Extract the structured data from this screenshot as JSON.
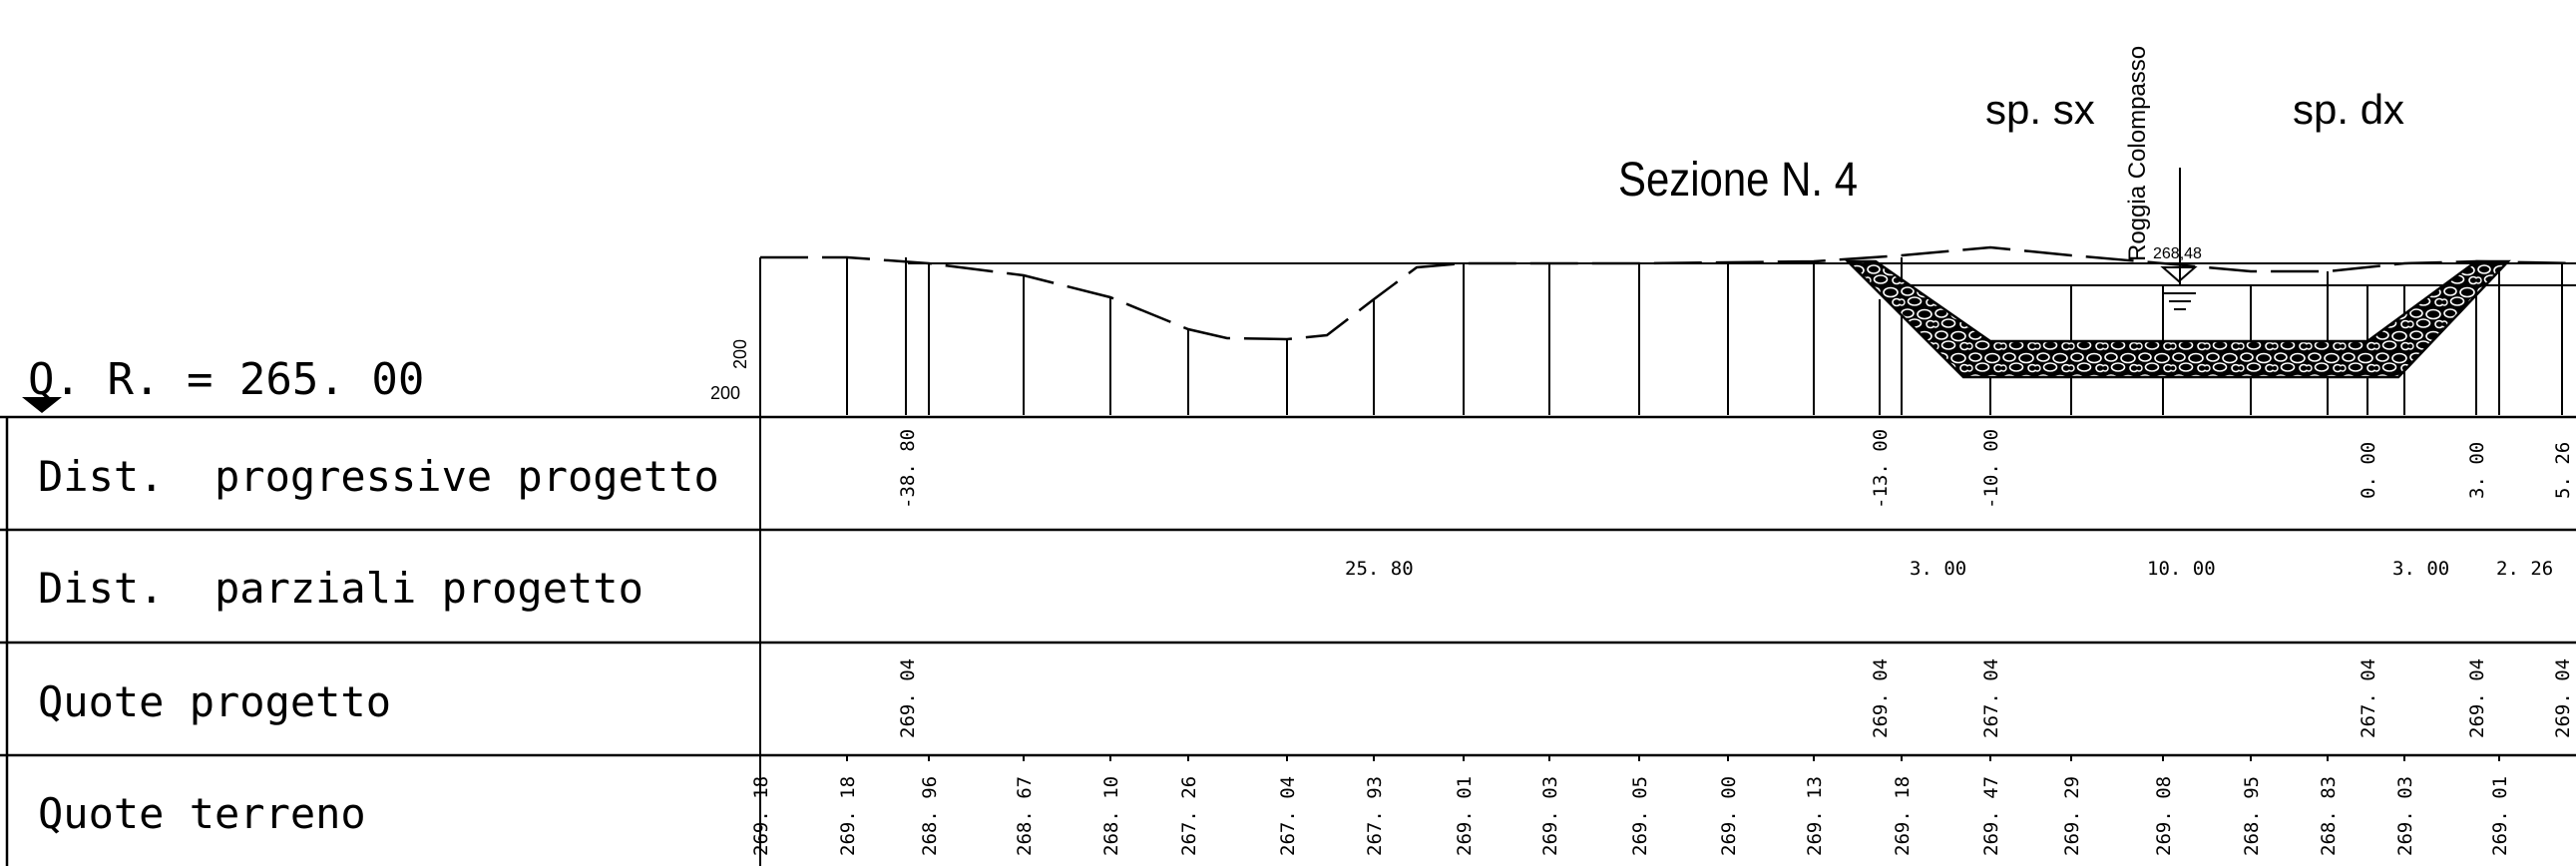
{
  "title": "Sezione N. 4",
  "reference": {
    "label": "Q. R.  = 265. 00"
  },
  "scale_labels": {
    "vertical": "200",
    "horizontal": "200"
  },
  "side_labels": {
    "left": "sp. sx",
    "right": "sp. dx"
  },
  "channel": {
    "name": "Roggia Colompasso",
    "water_level": "268,48"
  },
  "rows": [
    {
      "key": "progressive",
      "label": "Dist.  progressive progetto"
    },
    {
      "key": "parziali",
      "label": "Dist.  parziali progetto"
    },
    {
      "key": "quote_progetto",
      "label": "Quote progetto"
    },
    {
      "key": "quote_terreno",
      "label": "Quote terreno"
    }
  ],
  "progressive_values": [
    "-38. 80",
    "-13. 00",
    "-10. 00",
    "0. 00",
    "3. 00",
    "5. 26"
  ],
  "parziali_values": [
    "25. 80",
    "3. 00",
    "10. 00",
    "3. 00",
    "2. 26"
  ],
  "quote_progetto_values": [
    "269. 04",
    "269. 04",
    "267. 04",
    "267. 04",
    "269. 04",
    "269. 04"
  ],
  "quote_terreno_values": [
    "269. 18",
    "269. 18",
    "268. 96",
    "268. 67",
    "268. 10",
    "267. 26",
    "267. 04",
    "267. 93",
    "269. 01",
    "269. 03",
    "269. 05",
    "269. 00",
    "269. 13",
    "269. 18",
    "269. 47",
    "269. 29",
    "269. 08",
    "268. 95",
    "268. 83",
    "269. 03",
    "269. 01"
  ]
}
